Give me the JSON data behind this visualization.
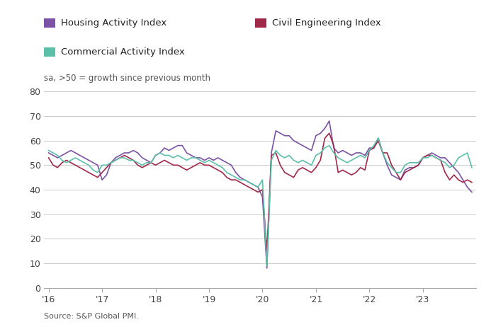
{
  "subtitle": "sa, >50 = growth since previous month",
  "source": "Source: S&P Global PMI.",
  "legend": [
    {
      "label": "Housing Activity Index",
      "color": "#7B52A6"
    },
    {
      "label": "Civil Engineering Index",
      "color": "#A0294A"
    },
    {
      "label": "Commercial Activity Index",
      "color": "#5CBFAA"
    }
  ],
  "ylim": [
    0,
    80
  ],
  "yticks": [
    0,
    10,
    20,
    30,
    40,
    50,
    60,
    70,
    80
  ],
  "xtick_labels": [
    "'16",
    "'17",
    "'18",
    "'19",
    "'20",
    "'21",
    "'22",
    "'23"
  ],
  "housing": [
    55,
    54,
    53,
    54,
    55,
    56,
    55,
    54,
    53,
    52,
    51,
    50,
    44,
    46,
    51,
    53,
    54,
    55,
    55,
    56,
    55,
    53,
    52,
    51,
    54,
    55,
    57,
    56,
    57,
    58,
    58,
    55,
    54,
    53,
    53,
    52,
    53,
    52,
    53,
    52,
    51,
    50,
    47,
    45,
    44,
    43,
    42,
    41,
    37,
    8,
    55,
    64,
    63,
    62,
    62,
    60,
    59,
    58,
    57,
    56,
    62,
    63,
    65,
    68,
    57,
    55,
    56,
    55,
    54,
    55,
    55,
    54,
    57,
    57,
    61,
    55,
    50,
    46,
    45,
    44,
    48,
    49,
    49,
    50,
    53,
    54,
    55,
    54,
    53,
    53,
    51,
    49,
    47,
    44,
    41,
    39
  ],
  "civil": [
    53,
    50,
    49,
    51,
    52,
    51,
    50,
    49,
    48,
    47,
    46,
    45,
    47,
    49,
    51,
    52,
    53,
    54,
    53,
    52,
    50,
    49,
    50,
    51,
    50,
    51,
    52,
    51,
    50,
    50,
    49,
    48,
    49,
    50,
    51,
    50,
    50,
    49,
    48,
    47,
    45,
    44,
    44,
    43,
    42,
    41,
    40,
    39,
    40,
    15,
    54,
    55,
    50,
    47,
    46,
    45,
    48,
    49,
    48,
    47,
    49,
    52,
    61,
    63,
    58,
    47,
    48,
    47,
    46,
    47,
    49,
    48,
    56,
    57,
    60,
    55,
    55,
    50,
    47,
    44,
    47,
    48,
    49,
    50,
    53,
    54,
    54,
    53,
    52,
    47,
    44,
    46,
    44,
    43,
    44,
    43
  ],
  "commercial": [
    56,
    55,
    54,
    52,
    51,
    52,
    53,
    52,
    51,
    50,
    48,
    47,
    50,
    50,
    51,
    52,
    53,
    53,
    52,
    52,
    51,
    50,
    51,
    51,
    54,
    55,
    54,
    54,
    53,
    54,
    53,
    52,
    53,
    53,
    52,
    51,
    52,
    51,
    50,
    49,
    47,
    46,
    45,
    44,
    44,
    43,
    42,
    41,
    44,
    9,
    52,
    56,
    54,
    53,
    54,
    52,
    51,
    52,
    51,
    50,
    54,
    55,
    57,
    58,
    55,
    53,
    52,
    51,
    52,
    53,
    54,
    53,
    56,
    58,
    61,
    55,
    51,
    49,
    47,
    47,
    50,
    51,
    51,
    51,
    53,
    53,
    54,
    53,
    52,
    51,
    49,
    50,
    53,
    54,
    55,
    49
  ]
}
